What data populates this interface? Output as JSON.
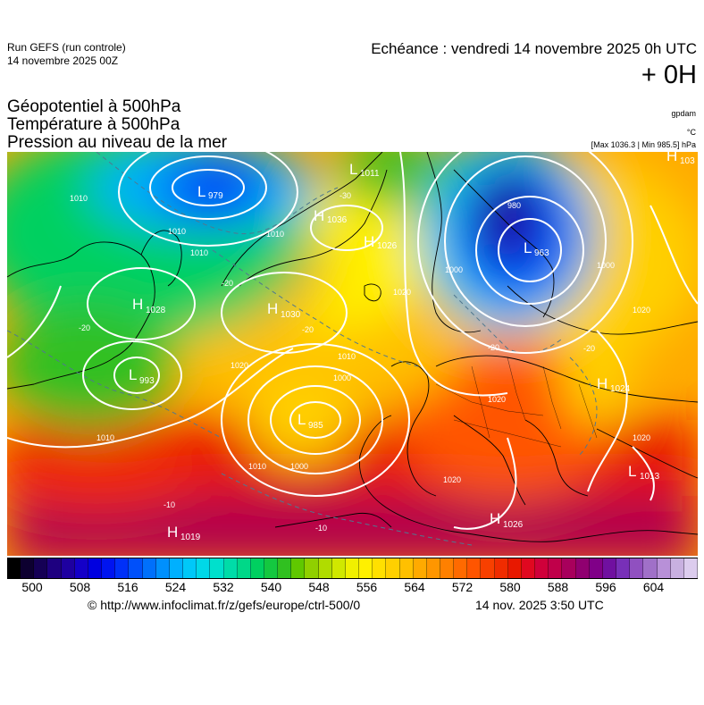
{
  "header": {
    "run_name": "Run GEFS (run controle)",
    "run_date": "14 novembre 2025 00Z",
    "validity": "Echéance : vendredi 14 novembre 2025 0h UTC",
    "lead_time": "+ 0H"
  },
  "layers": {
    "geopotential": "Géopotentiel à 500hPa",
    "temperature": "Température à 500hPa",
    "pressure": "Pression au niveau de la mer"
  },
  "units": {
    "geopotential": "gpdam",
    "temperature": "°C",
    "pressure": "[Max 1036.3 | Min 985.5] hPa"
  },
  "pressure_centers": [
    {
      "type": "L",
      "value": "979"
    },
    {
      "type": "L",
      "value": "1011"
    },
    {
      "type": "H",
      "value": "1036"
    },
    {
      "type": "H",
      "value": "1026"
    },
    {
      "type": "H",
      "value": "1028"
    },
    {
      "type": "H",
      "value": "1030"
    },
    {
      "type": "L",
      "value": "993"
    },
    {
      "type": "L",
      "value": "985"
    },
    {
      "type": "H",
      "value": "1019"
    },
    {
      "type": "L",
      "value": "963"
    },
    {
      "type": "H",
      "value": "1024"
    },
    {
      "type": "L",
      "value": "1013"
    },
    {
      "type": "H",
      "value": "1026"
    },
    {
      "type": "H",
      "value": "103"
    }
  ],
  "isobar_labels": [
    "1010",
    "1010",
    "1010",
    "1010",
    "1020",
    "1020",
    "1010",
    "1000",
    "1000",
    "980",
    "1000",
    "1020",
    "1020",
    "1020",
    "1020",
    "1010",
    "1000",
    "1010"
  ],
  "temperature_labels": [
    "-30",
    "-20",
    "-20",
    "-20",
    "-10",
    "-10",
    "-20",
    "-20"
  ],
  "color_scale": {
    "labels": [
      "500",
      "508",
      "516",
      "524",
      "532",
      "540",
      "548",
      "556",
      "564",
      "572",
      "580",
      "588",
      "596",
      "604"
    ],
    "colors": [
      "#000000",
      "#0d0030",
      "#150055",
      "#1e0080",
      "#1e00a0",
      "#1400c8",
      "#0000e0",
      "#0014f0",
      "#0030f8",
      "#0050fa",
      "#0070fc",
      "#0090fd",
      "#00b0fe",
      "#00c8f8",
      "#00d8e8",
      "#00e0cc",
      "#00dca8",
      "#00d888",
      "#00d060",
      "#14c840",
      "#30c020",
      "#60c800",
      "#90d000",
      "#b0dc00",
      "#d0e800",
      "#f0f000",
      "#fff000",
      "#ffe000",
      "#ffd000",
      "#ffc000",
      "#ffaa00",
      "#ff9600",
      "#ff8000",
      "#ff6a00",
      "#ff5500",
      "#f84000",
      "#f02c00",
      "#e81800",
      "#e00820",
      "#d0003a",
      "#c0004a",
      "#a8005c",
      "#900070",
      "#800088",
      "#7010a0",
      "#7830b8",
      "#9050c0",
      "#a070c8",
      "#b890d8",
      "#c8b0e0",
      "#dcccee"
    ]
  },
  "footer": {
    "credit": "© http://www.infoclimat.fr/z/gefs/europe/ctrl-500/0",
    "timestamp": "14 nov. 2025  3:50 UTC"
  }
}
